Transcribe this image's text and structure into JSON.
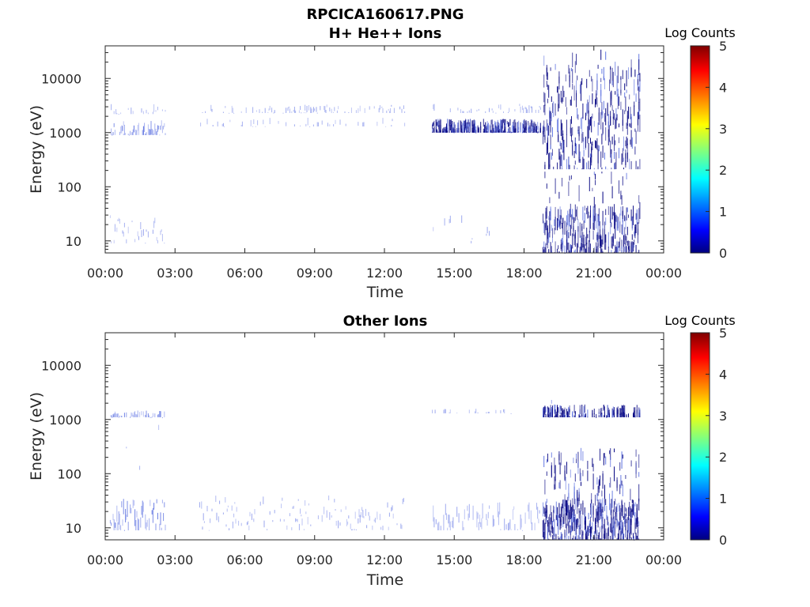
{
  "figure": {
    "title_line1": "RPCICA160617.PNG"
  },
  "colors": {
    "colormap": [
      "#00007f",
      "#0000ff",
      "#00ffff",
      "#ffff00",
      "#ff0000",
      "#7f0000"
    ],
    "faint_blue": "#9aa6ee",
    "mid_blue": "#5a6fe0",
    "dark_blue": "#000080"
  },
  "chart_data": [
    {
      "type": "heatmap",
      "title": "H+ He++ Ions",
      "xlabel": "Time",
      "ylabel": "Energy (eV)",
      "x_ticks": [
        "00:00",
        "03:00",
        "06:00",
        "09:00",
        "12:00",
        "15:00",
        "18:00",
        "21:00",
        "00:00"
      ],
      "x_range_hours": [
        0,
        24
      ],
      "y_scale": "log",
      "y_ticks": [
        "10",
        "100",
        "1000",
        "10000"
      ],
      "y_range_eV": [
        6,
        40000
      ],
      "colorbar": {
        "label": "Log Counts",
        "min": 0,
        "max": 5,
        "ticks": [
          "0",
          "1",
          "2",
          "3",
          "4",
          "5"
        ]
      },
      "bands": [
        {
          "t_start": 0.2,
          "t_end": 2.6,
          "e_low": 900,
          "e_high": 1700,
          "intensity": 0.8,
          "density": 0.8
        },
        {
          "t_start": 0.2,
          "t_end": 2.6,
          "e_low": 2200,
          "e_high": 3500,
          "intensity": 0.4,
          "density": 0.3
        },
        {
          "t_start": 0.2,
          "t_end": 2.6,
          "e_low": 9,
          "e_high": 30,
          "intensity": 0.5,
          "density": 0.5
        },
        {
          "t_start": 0.2,
          "t_end": 2.6,
          "e_low": 40,
          "e_high": 12000,
          "intensity": 0.3,
          "density": 0.05
        },
        {
          "t_start": 4.0,
          "t_end": 12.9,
          "e_low": 2300,
          "e_high": 3300,
          "intensity": 0.4,
          "density": 0.35
        },
        {
          "t_start": 4.0,
          "t_end": 12.9,
          "e_low": 1300,
          "e_high": 1900,
          "intensity": 0.35,
          "density": 0.15
        },
        {
          "t_start": 14.0,
          "t_end": 18.7,
          "e_low": 1000,
          "e_high": 1800,
          "intensity": 0.9,
          "density": 0.85
        },
        {
          "t_start": 14.0,
          "t_end": 18.7,
          "e_low": 2300,
          "e_high": 3500,
          "intensity": 0.4,
          "density": 0.25
        },
        {
          "t_start": 14.0,
          "t_end": 17.0,
          "e_low": 9,
          "e_high": 35,
          "intensity": 0.3,
          "density": 0.1
        },
        {
          "t_start": 18.8,
          "t_end": 23.0,
          "e_low": 6,
          "e_high": 35000,
          "intensity": 1.0,
          "density": 0.55
        },
        {
          "t_start": 18.8,
          "t_end": 23.0,
          "e_low": 200,
          "e_high": 18000,
          "intensity": 1.0,
          "density": 0.85
        },
        {
          "t_start": 18.8,
          "t_end": 23.0,
          "e_low": 6,
          "e_high": 45,
          "intensity": 1.0,
          "density": 0.85
        }
      ],
      "gaps": [
        {
          "t_start": 18.8,
          "t_end": 23.0,
          "e": 200
        }
      ]
    },
    {
      "type": "heatmap",
      "title": "Other Ions",
      "xlabel": "Time",
      "ylabel": "Energy (eV)",
      "x_ticks": [
        "00:00",
        "03:00",
        "06:00",
        "09:00",
        "12:00",
        "15:00",
        "18:00",
        "21:00",
        "00:00"
      ],
      "x_range_hours": [
        0,
        24
      ],
      "y_scale": "log",
      "y_ticks": [
        "10",
        "100",
        "1000",
        "10000"
      ],
      "y_range_eV": [
        6,
        40000
      ],
      "colorbar": {
        "label": "Log Counts",
        "min": 0,
        "max": 5,
        "ticks": [
          "0",
          "1",
          "2",
          "3",
          "4",
          "5"
        ]
      },
      "bands": [
        {
          "t_start": 0.2,
          "t_end": 2.6,
          "e_low": 1100,
          "e_high": 1500,
          "intensity": 0.7,
          "density": 0.6
        },
        {
          "t_start": 0.2,
          "t_end": 2.6,
          "e_low": 9,
          "e_high": 35,
          "intensity": 0.8,
          "density": 0.85
        },
        {
          "t_start": 0.2,
          "t_end": 2.6,
          "e_low": 40,
          "e_high": 1000,
          "intensity": 0.3,
          "density": 0.05
        },
        {
          "t_start": 4.0,
          "t_end": 12.9,
          "e_low": 9,
          "e_high": 40,
          "intensity": 0.45,
          "density": 0.5
        },
        {
          "t_start": 14.0,
          "t_end": 18.7,
          "e_low": 9,
          "e_high": 30,
          "intensity": 0.5,
          "density": 0.55
        },
        {
          "t_start": 14.0,
          "t_end": 17.5,
          "e_low": 1300,
          "e_high": 1600,
          "intensity": 0.3,
          "density": 0.2
        },
        {
          "t_start": 18.8,
          "t_end": 23.0,
          "e_low": 6,
          "e_high": 300,
          "intensity": 1.0,
          "density": 0.6
        },
        {
          "t_start": 18.8,
          "t_end": 23.0,
          "e_low": 6,
          "e_high": 35,
          "intensity": 1.0,
          "density": 0.9
        },
        {
          "t_start": 18.8,
          "t_end": 23.0,
          "e_low": 1100,
          "e_high": 1900,
          "intensity": 0.9,
          "density": 0.75
        },
        {
          "t_start": 18.8,
          "t_end": 19.2,
          "e_low": 300,
          "e_high": 20000,
          "intensity": 0.6,
          "density": 0.2
        }
      ],
      "gaps": []
    }
  ]
}
